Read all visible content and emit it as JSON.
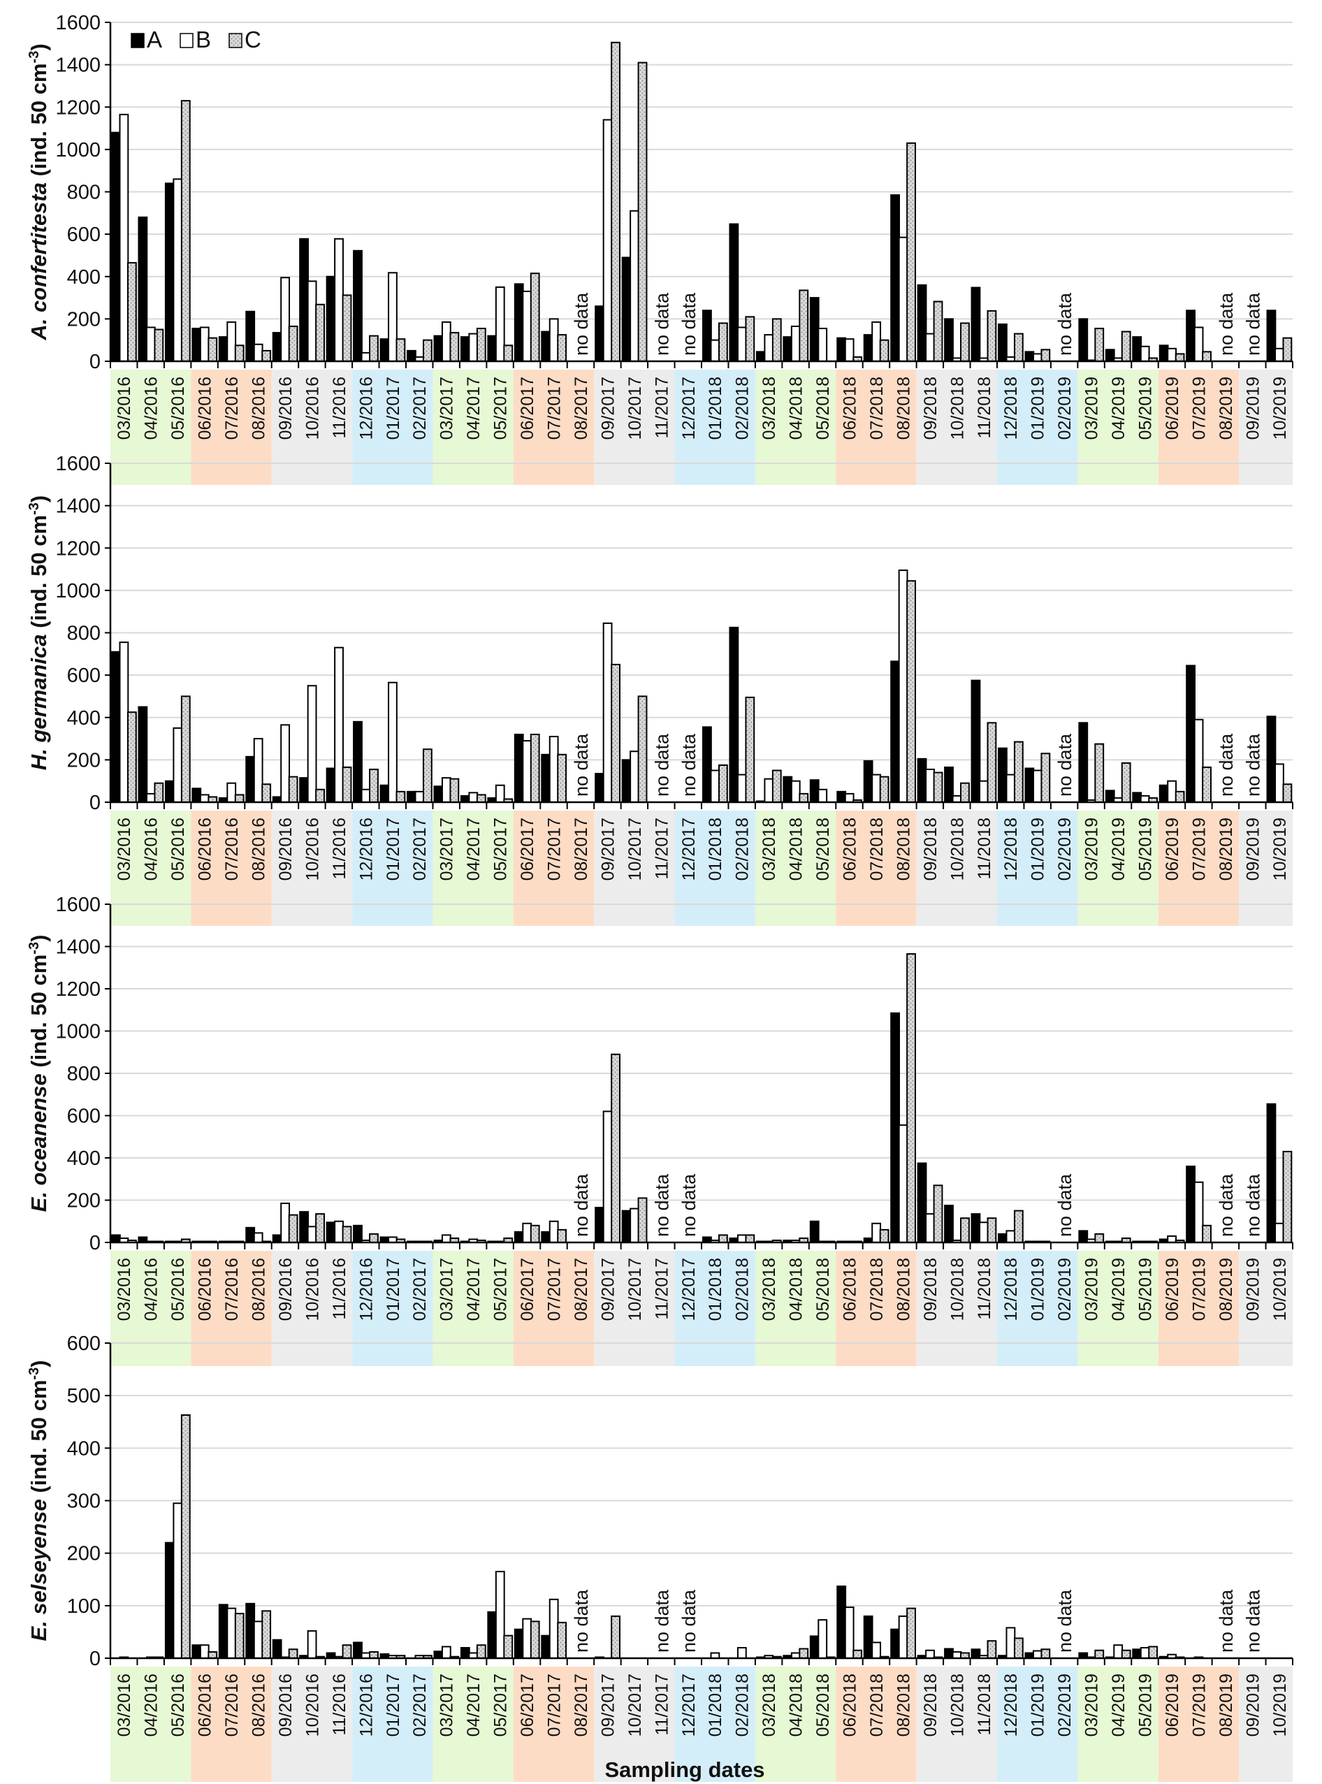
{
  "chart_data": [
    {
      "type": "bar",
      "title": "",
      "ylabel_italic": "A. confertitesta",
      "ylabel_rest": " (ind. 50 cm",
      "ylabel_sup": "-3",
      "ylabel_close": ")",
      "ylim": [
        0,
        1600
      ],
      "yticks": [
        0,
        200,
        400,
        600,
        800,
        1000,
        1200,
        1400,
        1600
      ],
      "grid": true,
      "legend": {
        "position": "top-left",
        "entries": [
          "A",
          "B",
          "C"
        ]
      },
      "series": [
        {
          "name": "A",
          "values": [
            1080,
            680,
            840,
            155,
            115,
            235,
            135,
            578,
            400,
            522,
            105,
            50,
            120,
            115,
            120,
            365,
            140,
            null,
            260,
            490,
            null,
            null,
            240,
            648,
            45,
            115,
            300,
            110,
            125,
            785,
            360,
            200,
            348,
            175,
            45,
            0,
            200,
            55,
            115,
            75,
            240,
            null,
            null,
            240
          ]
        },
        {
          "name": "B",
          "values": [
            1165,
            160,
            860,
            160,
            185,
            80,
            395,
            378,
            578,
            40,
            418,
            20,
            185,
            130,
            350,
            330,
            200,
            null,
            1140,
            710,
            null,
            null,
            100,
            160,
            125,
            165,
            155,
            105,
            185,
            585,
            130,
            15,
            15,
            20,
            35,
            0,
            5,
            15,
            70,
            60,
            160,
            null,
            null,
            60
          ]
        },
        {
          "name": "C",
          "values": [
            465,
            150,
            1230,
            110,
            75,
            50,
            165,
            268,
            312,
            120,
            105,
            100,
            135,
            155,
            75,
            415,
            125,
            null,
            1505,
            1410,
            null,
            null,
            180,
            210,
            200,
            335,
            0,
            20,
            100,
            1030,
            282,
            180,
            238,
            130,
            55,
            0,
            155,
            140,
            15,
            35,
            45,
            null,
            null,
            110
          ]
        }
      ],
      "no_data": [
        "08/2017",
        "11/2017",
        "12/2017",
        "02/2019",
        "08/2019",
        "09/2019"
      ]
    },
    {
      "type": "bar",
      "title": "",
      "ylabel_italic": "H. germanica",
      "ylabel_rest": " (ind. 50 cm",
      "ylabel_sup": "-3",
      "ylabel_close": ")",
      "ylim": [
        0,
        1600
      ],
      "yticks": [
        0,
        200,
        400,
        600,
        800,
        1000,
        1200,
        1400,
        1600
      ],
      "grid": true,
      "series": [
        {
          "name": "A",
          "values": [
            710,
            450,
            100,
            65,
            20,
            215,
            25,
            115,
            160,
            380,
            80,
            50,
            75,
            30,
            20,
            320,
            225,
            null,
            135,
            200,
            null,
            null,
            355,
            825,
            5,
            120,
            105,
            50,
            195,
            665,
            205,
            165,
            575,
            255,
            160,
            0,
            375,
            55,
            45,
            80,
            645,
            null,
            null,
            405
          ]
        },
        {
          "name": "B",
          "values": [
            755,
            40,
            350,
            35,
            90,
            300,
            365,
            550,
            730,
            60,
            565,
            50,
            115,
            45,
            80,
            290,
            310,
            null,
            845,
            240,
            null,
            null,
            150,
            130,
            110,
            100,
            60,
            40,
            130,
            1095,
            155,
            30,
            100,
            130,
            150,
            0,
            10,
            20,
            30,
            100,
            390,
            null,
            null,
            180
          ]
        },
        {
          "name": "C",
          "values": [
            425,
            90,
            500,
            25,
            35,
            85,
            120,
            60,
            165,
            155,
            50,
            250,
            110,
            35,
            15,
            320,
            225,
            null,
            650,
            500,
            null,
            null,
            175,
            495,
            150,
            40,
            0,
            10,
            120,
            1045,
            140,
            90,
            375,
            285,
            230,
            0,
            275,
            185,
            20,
            50,
            165,
            null,
            null,
            85
          ]
        }
      ],
      "no_data": [
        "08/2017",
        "11/2017",
        "12/2017",
        "02/2019",
        "08/2019",
        "09/2019"
      ]
    },
    {
      "type": "bar",
      "title": "",
      "ylabel_italic": "E. oceanense",
      "ylabel_rest": " (ind. 50 cm",
      "ylabel_sup": "-3",
      "ylabel_close": ")",
      "ylim": [
        0,
        1600
      ],
      "yticks": [
        0,
        200,
        400,
        600,
        800,
        1000,
        1200,
        1400,
        1600
      ],
      "grid": true,
      "series": [
        {
          "name": "A",
          "values": [
            35,
            25,
            5,
            5,
            5,
            70,
            35,
            145,
            95,
            80,
            25,
            5,
            10,
            5,
            5,
            50,
            50,
            null,
            165,
            150,
            null,
            null,
            25,
            20,
            5,
            10,
            100,
            5,
            20,
            1085,
            375,
            175,
            135,
            40,
            5,
            0,
            55,
            5,
            5,
            15,
            360,
            null,
            null,
            655
          ]
        },
        {
          "name": "B",
          "values": [
            20,
            5,
            5,
            5,
            5,
            45,
            185,
            75,
            100,
            10,
            25,
            5,
            35,
            15,
            5,
            90,
            100,
            null,
            620,
            160,
            null,
            null,
            10,
            35,
            5,
            10,
            5,
            5,
            90,
            555,
            135,
            10,
            95,
            55,
            5,
            0,
            15,
            5,
            5,
            30,
            285,
            null,
            null,
            90
          ]
        },
        {
          "name": "C",
          "values": [
            10,
            5,
            15,
            5,
            5,
            5,
            130,
            135,
            75,
            40,
            15,
            5,
            20,
            10,
            20,
            80,
            60,
            null,
            890,
            210,
            null,
            null,
            35,
            35,
            10,
            20,
            5,
            5,
            60,
            1365,
            270,
            115,
            115,
            150,
            5,
            0,
            40,
            20,
            5,
            10,
            80,
            null,
            null,
            430
          ]
        }
      ],
      "no_data": [
        "08/2017",
        "11/2017",
        "12/2017",
        "02/2019",
        "08/2019",
        "09/2019"
      ]
    },
    {
      "type": "bar",
      "title": "",
      "ylabel_italic": "E. selseyense",
      "ylabel_rest": " (ind. 50 cm",
      "ylabel_sup": "-3",
      "ylabel_close": ")",
      "ylim": [
        0,
        600
      ],
      "yticks": [
        0,
        100,
        200,
        300,
        400,
        500,
        600
      ],
      "grid": true,
      "series": [
        {
          "name": "A",
          "values": [
            0,
            0,
            220,
            25,
            102,
            104,
            35,
            5,
            10,
            30,
            8,
            0,
            13,
            20,
            88,
            55,
            43,
            null,
            2,
            0,
            null,
            null,
            0,
            0,
            2,
            5,
            42,
            137,
            80,
            55,
            5,
            18,
            17,
            5,
            10,
            null,
            10,
            2,
            17,
            3,
            0,
            null,
            null,
            0
          ]
        },
        {
          "name": "B",
          "values": [
            2,
            2,
            295,
            25,
            95,
            70,
            2,
            52,
            3,
            10,
            5,
            5,
            22,
            10,
            165,
            75,
            112,
            null,
            0,
            0,
            null,
            null,
            10,
            20,
            5,
            10,
            73,
            97,
            30,
            80,
            15,
            12,
            5,
            58,
            14,
            null,
            2,
            25,
            20,
            7,
            2,
            null,
            null,
            0
          ]
        },
        {
          "name": "C",
          "values": [
            0,
            2,
            463,
            12,
            85,
            90,
            17,
            3,
            25,
            12,
            5,
            5,
            3,
            25,
            43,
            70,
            68,
            null,
            80,
            0,
            null,
            null,
            0,
            0,
            3,
            18,
            2,
            15,
            3,
            95,
            2,
            10,
            33,
            38,
            17,
            null,
            15,
            15,
            22,
            2,
            0,
            null,
            null,
            0
          ]
        }
      ],
      "no_data": [
        "08/2017",
        "11/2017",
        "12/2017",
        "02/2019",
        "08/2019",
        "09/2019"
      ]
    }
  ],
  "categories": [
    "03/2016",
    "04/2016",
    "05/2016",
    "06/2016",
    "07/2016",
    "08/2016",
    "09/2016",
    "10/2016",
    "11/2016",
    "12/2016",
    "01/2017",
    "02/2017",
    "03/2017",
    "04/2017",
    "05/2017",
    "06/2017",
    "07/2017",
    "08/2017",
    "09/2017",
    "10/2017",
    "11/2017",
    "12/2017",
    "01/2018",
    "02/2018",
    "03/2018",
    "04/2018",
    "05/2018",
    "06/2018",
    "07/2018",
    "08/2018",
    "09/2018",
    "10/2018",
    "11/2018",
    "12/2018",
    "01/2019",
    "02/2019",
    "03/2019",
    "04/2019",
    "05/2019",
    "06/2019",
    "07/2019",
    "08/2019",
    "09/2019",
    "10/2019"
  ],
  "season_bands": [
    {
      "season": "spring",
      "color": "#e6f8d4",
      "from": 0,
      "to": 2
    },
    {
      "season": "summer",
      "color": "#fddcc6",
      "from": 3,
      "to": 5
    },
    {
      "season": "autumn",
      "color": "#ececec",
      "from": 6,
      "to": 8
    },
    {
      "season": "winter",
      "color": "#d4eef9",
      "from": 9,
      "to": 11
    },
    {
      "season": "spring",
      "color": "#e6f8d4",
      "from": 12,
      "to": 14
    },
    {
      "season": "summer",
      "color": "#fddcc6",
      "from": 15,
      "to": 17
    },
    {
      "season": "autumn",
      "color": "#ececec",
      "from": 18,
      "to": 20
    },
    {
      "season": "winter",
      "color": "#d4eef9",
      "from": 21,
      "to": 23
    },
    {
      "season": "spring",
      "color": "#e6f8d4",
      "from": 24,
      "to": 26
    },
    {
      "season": "summer",
      "color": "#fddcc6",
      "from": 27,
      "to": 29
    },
    {
      "season": "autumn",
      "color": "#ececec",
      "from": 30,
      "to": 32
    },
    {
      "season": "winter",
      "color": "#d4eef9",
      "from": 33,
      "to": 35
    },
    {
      "season": "spring",
      "color": "#e6f8d4",
      "from": 36,
      "to": 38
    },
    {
      "season": "summer",
      "color": "#fddcc6",
      "from": 39,
      "to": 41
    },
    {
      "season": "autumn",
      "color": "#ececec",
      "from": 42,
      "to": 43
    }
  ],
  "no_data_label": "no data",
  "xlabel": "Sampling dates",
  "series_colors": {
    "A": "#000000",
    "B": "#ffffff",
    "C": "#c8c8c8"
  }
}
